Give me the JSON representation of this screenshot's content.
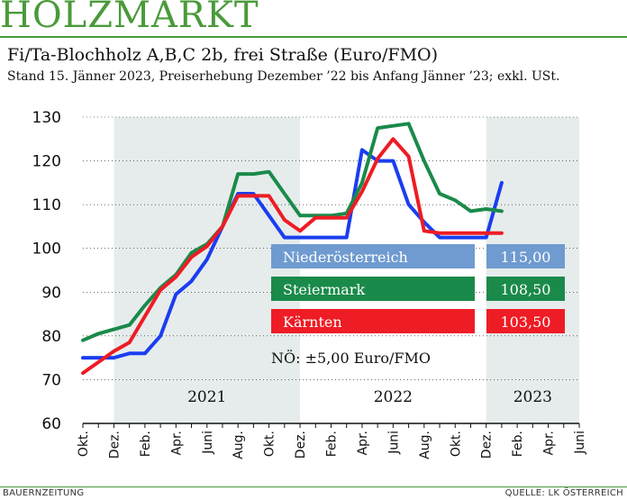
{
  "header": {
    "brand": "HOLZMARKT",
    "subtitle": "Fi/Ta-Blochholz A,B,C 2b, frei Straße (Euro/FMO)",
    "note": "Stand 15. Jänner 2023, Preiserhebung Dezember ’22 bis Anfang Jänner ’23; exkl. USt."
  },
  "footer": {
    "left": "BAUERNZEITUNG",
    "right": "QUELLE: LK ÖSTERREICH"
  },
  "colors": {
    "brand": "#4a9a3a",
    "shade": "#e6ecec",
    "niederoesterreich": "#1a3ef0",
    "steiermark": "#1a8a4a",
    "kaernten": "#ee1c24",
    "legend_noe_bg": "#6f9bd0",
    "legend_stmk_bg": "#1a8a4a",
    "legend_ktn_bg": "#ee1c24"
  },
  "chart_data": {
    "type": "line",
    "ylim": [
      60,
      130
    ],
    "yticks": [
      60,
      70,
      80,
      90,
      100,
      110,
      120,
      130
    ],
    "x_start": "2020-10",
    "x_end": "2023-06",
    "month_ticks": [
      {
        "x": "2020-10",
        "label": "Okt."
      },
      {
        "x": "2020-12",
        "label": "Dez."
      },
      {
        "x": "2021-02",
        "label": "Feb."
      },
      {
        "x": "2021-04",
        "label": "Apr."
      },
      {
        "x": "2021-06",
        "label": "Juni"
      },
      {
        "x": "2021-08",
        "label": "Aug."
      },
      {
        "x": "2021-10",
        "label": "Okt."
      },
      {
        "x": "2021-12",
        "label": "Dez."
      },
      {
        "x": "2022-02",
        "label": "Feb."
      },
      {
        "x": "2022-04",
        "label": "Apr."
      },
      {
        "x": "2022-06",
        "label": "Juni"
      },
      {
        "x": "2022-08",
        "label": "Aug."
      },
      {
        "x": "2022-10",
        "label": "Okt."
      },
      {
        "x": "2022-12",
        "label": "Dez."
      },
      {
        "x": "2023-02",
        "label": "Feb."
      },
      {
        "x": "2023-04",
        "label": "Apr."
      },
      {
        "x": "2023-06",
        "label": "Juni"
      }
    ],
    "year_bands": [
      {
        "label": "2021",
        "from": "2020-12",
        "to": "2021-12",
        "shaded": true
      },
      {
        "label": "2022",
        "from": "2021-12",
        "to": "2022-12",
        "shaded": false
      },
      {
        "label": "2023",
        "from": "2022-12",
        "to": "2023-06",
        "shaded": true
      }
    ],
    "series": [
      {
        "name": "Niederösterreich",
        "color": "#1a3ef0",
        "value_label": "115,00",
        "points": [
          [
            "2020-10",
            75
          ],
          [
            "2020-11",
            75
          ],
          [
            "2020-12",
            75
          ],
          [
            "2021-01",
            76
          ],
          [
            "2021-02",
            76
          ],
          [
            "2021-03",
            80
          ],
          [
            "2021-04",
            89.5
          ],
          [
            "2021-05",
            92.5
          ],
          [
            "2021-06",
            97.5
          ],
          [
            "2021-07",
            105
          ],
          [
            "2021-08",
            112.5
          ],
          [
            "2021-09",
            112.5
          ],
          [
            "2021-10",
            107.5
          ],
          [
            "2021-11",
            102.5
          ],
          [
            "2021-12",
            102.5
          ],
          [
            "2022-01",
            102.5
          ],
          [
            "2022-02",
            102.5
          ],
          [
            "2022-03",
            102.5
          ],
          [
            "2022-04",
            122.5
          ],
          [
            "2022-05",
            120
          ],
          [
            "2022-06",
            120
          ],
          [
            "2022-07",
            110
          ],
          [
            "2022-08",
            106
          ],
          [
            "2022-09",
            102.5
          ],
          [
            "2022-10",
            102.5
          ],
          [
            "2022-11",
            102.5
          ],
          [
            "2022-12",
            102.5
          ],
          [
            "2023-01",
            115
          ]
        ]
      },
      {
        "name": "Steiermark",
        "color": "#1a8a4a",
        "value_label": "108,50",
        "points": [
          [
            "2020-10",
            79
          ],
          [
            "2020-11",
            80.5
          ],
          [
            "2020-12",
            81.5
          ],
          [
            "2021-01",
            82.5
          ],
          [
            "2021-02",
            87
          ],
          [
            "2021-03",
            91
          ],
          [
            "2021-04",
            94
          ],
          [
            "2021-05",
            99
          ],
          [
            "2021-06",
            101
          ],
          [
            "2021-07",
            105
          ],
          [
            "2021-08",
            117
          ],
          [
            "2021-09",
            117
          ],
          [
            "2021-10",
            117.5
          ],
          [
            "2021-11",
            112.5
          ],
          [
            "2021-12",
            107.5
          ],
          [
            "2022-01",
            107.5
          ],
          [
            "2022-02",
            107.5
          ],
          [
            "2022-03",
            108
          ],
          [
            "2022-04",
            115
          ],
          [
            "2022-05",
            127.5
          ],
          [
            "2022-06",
            128
          ],
          [
            "2022-07",
            128.5
          ],
          [
            "2022-08",
            120
          ],
          [
            "2022-09",
            112.5
          ],
          [
            "2022-10",
            111
          ],
          [
            "2022-11",
            108.5
          ],
          [
            "2022-12",
            109
          ],
          [
            "2023-01",
            108.5
          ]
        ]
      },
      {
        "name": "Kärnten",
        "color": "#ee1c24",
        "value_label": "103,50",
        "points": [
          [
            "2020-10",
            71.5
          ],
          [
            "2020-11",
            74
          ],
          [
            "2020-12",
            76.5
          ],
          [
            "2021-01",
            78.5
          ],
          [
            "2021-02",
            84.5
          ],
          [
            "2021-03",
            90.5
          ],
          [
            "2021-04",
            93.5
          ],
          [
            "2021-05",
            98
          ],
          [
            "2021-06",
            100.5
          ],
          [
            "2021-07",
            105
          ],
          [
            "2021-08",
            112
          ],
          [
            "2021-09",
            112
          ],
          [
            "2021-10",
            112
          ],
          [
            "2021-11",
            106.5
          ],
          [
            "2021-12",
            104
          ],
          [
            "2022-01",
            107
          ],
          [
            "2022-02",
            107
          ],
          [
            "2022-03",
            107
          ],
          [
            "2022-04",
            113
          ],
          [
            "2022-05",
            120.5
          ],
          [
            "2022-06",
            125
          ],
          [
            "2022-07",
            121
          ],
          [
            "2022-08",
            104
          ],
          [
            "2022-09",
            103.5
          ],
          [
            "2022-10",
            103.5
          ],
          [
            "2022-11",
            103.5
          ],
          [
            "2022-12",
            103.5
          ],
          [
            "2023-01",
            103.5
          ]
        ]
      }
    ],
    "legend": {
      "placement": "center-right",
      "entries": [
        {
          "name": "Niederösterreich",
          "value": "115,00",
          "bg": "#6f9bd0"
        },
        {
          "name": "Steiermark",
          "value": "108,50",
          "bg": "#1a8a4a"
        },
        {
          "name": "Kärnten",
          "value": "103,50",
          "bg": "#ee1c24"
        }
      ],
      "note": "NÖ: ±5,00 Euro/FMO"
    }
  }
}
